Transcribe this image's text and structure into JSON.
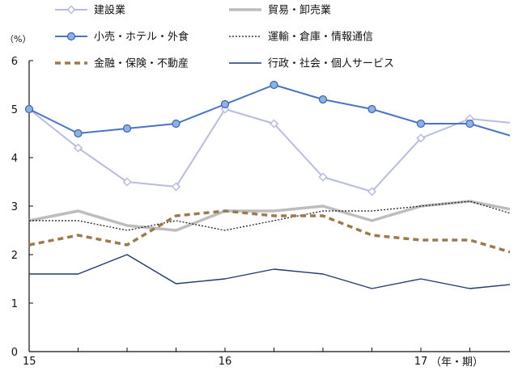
{
  "chart_data": {
    "type": "line",
    "ylabel": "（%）",
    "xlabel": "（年・期）",
    "ylim": [
      0,
      6
    ],
    "y_ticks": [
      0,
      1,
      2,
      3,
      4,
      5,
      6
    ],
    "x_tick_labels": [
      "15",
      "16",
      "17"
    ],
    "x_tick_label_positions": [
      0,
      4,
      8
    ],
    "x": [
      0,
      1,
      2,
      3,
      4,
      5,
      6,
      7,
      8,
      9,
      10
    ],
    "x_max": 9.9,
    "grid": false,
    "legend_position": "top",
    "series": [
      {
        "name": "建設業",
        "color": "#b7bbe0",
        "style": "open-diamond",
        "values": [
          5.0,
          4.2,
          3.5,
          3.4,
          5.0,
          4.7,
          3.6,
          3.3,
          4.4,
          4.8,
          4.7
        ]
      },
      {
        "name": "貿易・卸売業",
        "color": "#bdbdbd",
        "style": "thick",
        "values": [
          2.7,
          2.9,
          2.6,
          2.5,
          2.9,
          2.9,
          3.0,
          2.7,
          3.0,
          3.1,
          2.9
        ]
      },
      {
        "name": "小売・ホテル・外食",
        "color": "#4a73c4",
        "style": "filled-circle",
        "values": [
          5.0,
          4.5,
          4.6,
          4.7,
          5.1,
          5.5,
          5.2,
          5.0,
          4.7,
          4.7,
          4.4
        ]
      },
      {
        "name": "運輸・倉庫・情報通信",
        "color": "#111111",
        "style": "dotted",
        "values": [
          2.7,
          2.7,
          2.5,
          2.7,
          2.5,
          2.7,
          2.9,
          2.9,
          3.0,
          3.1,
          2.8
        ]
      },
      {
        "name": "金融・保険・不動産",
        "color": "#9c7a4f",
        "style": "dashed",
        "values": [
          2.2,
          2.4,
          2.2,
          2.8,
          2.9,
          2.8,
          2.8,
          2.4,
          2.3,
          2.3,
          2.0
        ]
      },
      {
        "name": "行政・社会・個人サービス",
        "color": "#1f3a6b",
        "style": "thin",
        "values": [
          1.6,
          1.6,
          2.0,
          1.4,
          1.5,
          1.7,
          1.6,
          1.3,
          1.5,
          1.3,
          1.4
        ]
      }
    ]
  }
}
